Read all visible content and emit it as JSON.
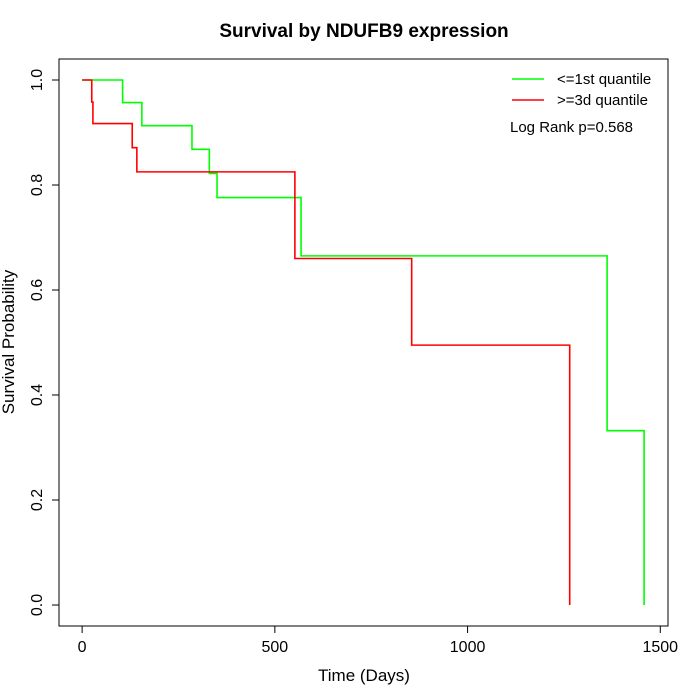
{
  "chart_data": {
    "type": "line",
    "title": "Survival by NDUFB9 expression",
    "xlabel": "Time (Days)",
    "ylabel": "Survival Probability",
    "xlim": [
      -60,
      1520
    ],
    "ylim": [
      -0.04,
      1.04
    ],
    "x_ticks": [
      0,
      500,
      1000,
      1500
    ],
    "y_ticks": [
      0.0,
      0.2,
      0.4,
      0.6,
      0.8,
      1.0
    ],
    "x_tick_labels": [
      "0",
      "500",
      "1000",
      "1500"
    ],
    "y_tick_labels": [
      "0.0",
      "0.2",
      "0.4",
      "0.6",
      "0.8",
      "1.0"
    ],
    "grid": false,
    "legend_position": "top-right",
    "annotation": "Log Rank p=0.568",
    "series": [
      {
        "name": "<=1st quantile",
        "color": "#00ff00",
        "step_points": [
          [
            0,
            1.0
          ],
          [
            105,
            0.957
          ],
          [
            155,
            0.913
          ],
          [
            285,
            0.868
          ],
          [
            330,
            0.822
          ],
          [
            350,
            0.776
          ],
          [
            568,
            0.665
          ],
          [
            1362,
            0.332
          ],
          [
            1458,
            0.0
          ]
        ]
      },
      {
        "name": ">=3d quantile",
        "color": "#ff0000",
        "step_points": [
          [
            0,
            1.0
          ],
          [
            25,
            0.958
          ],
          [
            28,
            0.917
          ],
          [
            130,
            0.871
          ],
          [
            142,
            0.825
          ],
          [
            552,
            0.66
          ],
          [
            855,
            0.495
          ],
          [
            1265,
            0.0
          ]
        ]
      }
    ]
  }
}
